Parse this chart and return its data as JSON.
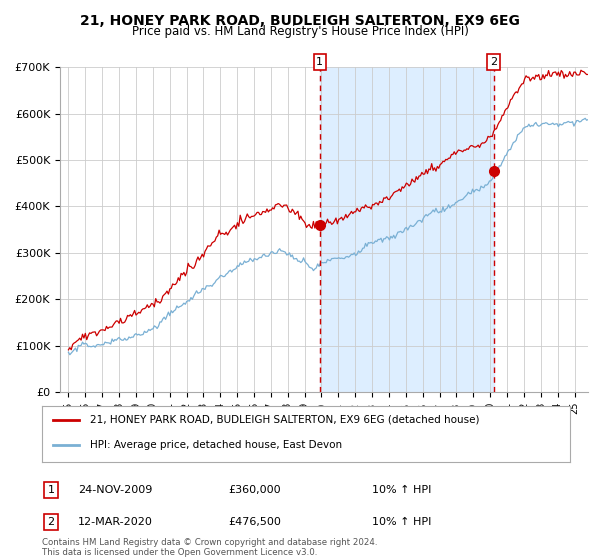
{
  "title": "21, HONEY PARK ROAD, BUDLEIGH SALTERTON, EX9 6EG",
  "subtitle": "Price paid vs. HM Land Registry's House Price Index (HPI)",
  "line1_label": "21, HONEY PARK ROAD, BUDLEIGH SALTERTON, EX9 6EG (detached house)",
  "line2_label": "HPI: Average price, detached house, East Devon",
  "marker1_date_label": "24-NOV-2009",
  "marker1_price": "£360,000",
  "marker1_hpi": "10% ↑ HPI",
  "marker2_date_label": "12-MAR-2020",
  "marker2_price": "£476,500",
  "marker2_hpi": "10% ↑ HPI",
  "marker1_x": 2009.9,
  "marker1_y": 360000,
  "marker2_x": 2020.2,
  "marker2_y": 476500,
  "vline1_x": 2009.9,
  "vline2_x": 2020.2,
  "shade_start": 2009.9,
  "shade_end": 2020.2,
  "ylim": [
    0,
    700000
  ],
  "xlim": [
    1994.5,
    2025.8
  ],
  "line1_color": "#cc0000",
  "line2_color": "#7ab0d4",
  "shade_color": "#ddeeff",
  "vline_color": "#cc0000",
  "grid_color": "#cccccc",
  "bg_color": "#ffffff",
  "footnote": "Contains HM Land Registry data © Crown copyright and database right 2024.\nThis data is licensed under the Open Government Licence v3.0.",
  "yticks": [
    0,
    100000,
    200000,
    300000,
    400000,
    500000,
    600000,
    700000
  ],
  "ytick_labels": [
    "£0",
    "£100K",
    "£200K",
    "£300K",
    "£400K",
    "£500K",
    "£600K",
    "£700K"
  ],
  "xtick_years": [
    1995,
    1996,
    1997,
    1998,
    1999,
    2000,
    2001,
    2002,
    2003,
    2004,
    2005,
    2006,
    2007,
    2008,
    2009,
    2010,
    2011,
    2012,
    2013,
    2014,
    2015,
    2016,
    2017,
    2018,
    2019,
    2020,
    2021,
    2022,
    2023,
    2024,
    2025
  ]
}
